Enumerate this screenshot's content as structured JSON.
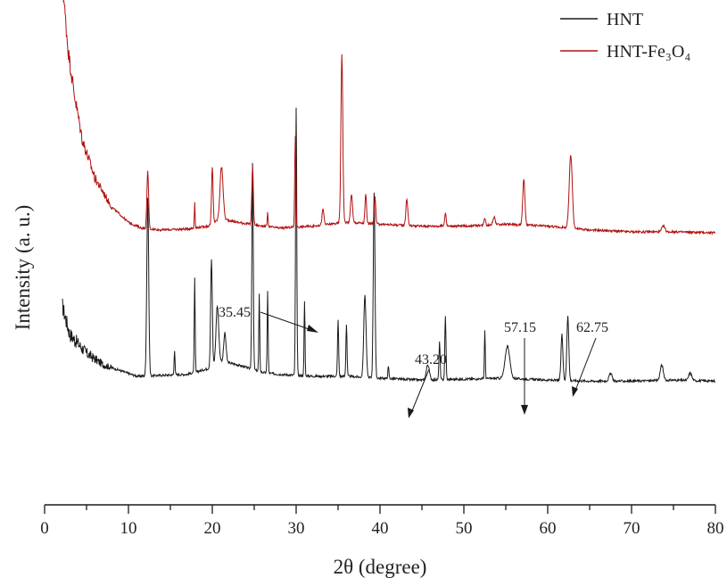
{
  "chart_data": {
    "type": "line",
    "xlabel": "2θ (degree)",
    "ylabel": "Intensity (a. u.)",
    "xlim": [
      0,
      80
    ],
    "xticks": [
      0,
      10,
      20,
      30,
      40,
      50,
      60,
      70,
      80
    ],
    "grid": false,
    "legend_position": "top-right",
    "series": [
      {
        "name": "HNT",
        "color": "#1a1a1a",
        "baseline": [
          [
            2.1,
            0.78
          ],
          [
            3,
            0.63
          ],
          [
            5,
            0.53
          ],
          [
            7,
            0.47
          ],
          [
            9,
            0.44
          ],
          [
            11,
            0.41
          ],
          [
            14,
            0.415
          ],
          [
            17,
            0.42
          ],
          [
            19.5,
            0.45
          ],
          [
            21,
            0.49
          ],
          [
            23,
            0.47
          ],
          [
            26,
            0.43
          ],
          [
            28,
            0.42
          ],
          [
            32,
            0.41
          ],
          [
            36,
            0.41
          ],
          [
            40,
            0.4
          ],
          [
            45,
            0.39
          ],
          [
            50,
            0.395
          ],
          [
            55,
            0.4
          ],
          [
            60,
            0.39
          ],
          [
            65,
            0.385
          ],
          [
            70,
            0.385
          ],
          [
            75,
            0.39
          ],
          [
            80,
            0.385
          ]
        ],
        "peaks": [
          [
            12.3,
            0.93,
            0.25
          ],
          [
            15.5,
            0.13,
            0.12
          ],
          [
            17.9,
            0.49,
            0.12
          ],
          [
            19.9,
            0.56,
            0.22
          ],
          [
            20.6,
            0.3,
            0.35
          ],
          [
            21.5,
            0.15,
            0.3
          ],
          [
            24.8,
            1.07,
            0.18
          ],
          [
            25.6,
            0.4,
            0.12
          ],
          [
            26.6,
            0.43,
            0.12
          ],
          [
            30.0,
            1.39,
            0.16
          ],
          [
            31.0,
            0.39,
            0.12
          ],
          [
            35.0,
            0.29,
            0.15
          ],
          [
            36.0,
            0.27,
            0.15
          ],
          [
            38.2,
            0.43,
            0.3
          ],
          [
            39.3,
            0.97,
            0.22
          ],
          [
            41.0,
            0.06,
            0.15
          ],
          [
            45.7,
            0.08,
            0.4
          ],
          [
            47.1,
            0.2,
            0.15
          ],
          [
            47.8,
            0.33,
            0.15
          ],
          [
            52.5,
            0.25,
            0.12
          ],
          [
            55.2,
            0.17,
            0.6
          ],
          [
            61.7,
            0.24,
            0.25
          ],
          [
            62.4,
            0.34,
            0.25
          ],
          [
            67.5,
            0.04,
            0.4
          ],
          [
            73.6,
            0.08,
            0.4
          ],
          [
            77.0,
            0.04,
            0.4
          ]
        ]
      },
      {
        "name": "HNT-Fe₃O₄",
        "color": "#b01010",
        "baseline": [
          [
            2.1,
            1.38
          ],
          [
            2.8,
            1.02
          ],
          [
            3.5,
            0.8
          ],
          [
            4.5,
            0.55
          ],
          [
            6,
            0.35
          ],
          [
            8,
            0.2
          ],
          [
            10,
            0.12
          ],
          [
            11.5,
            0.09
          ],
          [
            14,
            0.08
          ],
          [
            17,
            0.085
          ],
          [
            19.5,
            0.1
          ],
          [
            21,
            0.14
          ],
          [
            23,
            0.12
          ],
          [
            26,
            0.1
          ],
          [
            28,
            0.09
          ],
          [
            32,
            0.1
          ],
          [
            34,
            0.11
          ],
          [
            36,
            0.12
          ],
          [
            40,
            0.11
          ],
          [
            45,
            0.1
          ],
          [
            50,
            0.1
          ],
          [
            55,
            0.11
          ],
          [
            60,
            0.1
          ],
          [
            65,
            0.08
          ],
          [
            70,
            0.07
          ],
          [
            75,
            0.07
          ],
          [
            80,
            0.065
          ]
        ],
        "peaks": [
          [
            12.3,
            0.3,
            0.22
          ],
          [
            17.9,
            0.14,
            0.1
          ],
          [
            20.0,
            0.29,
            0.2
          ],
          [
            21.1,
            0.27,
            0.4
          ],
          [
            24.8,
            0.3,
            0.2
          ],
          [
            26.6,
            0.07,
            0.12
          ],
          [
            29.9,
            0.47,
            0.16
          ],
          [
            33.2,
            0.08,
            0.25
          ],
          [
            35.45,
            0.88,
            0.25
          ],
          [
            36.6,
            0.15,
            0.25
          ],
          [
            38.3,
            0.15,
            0.2
          ],
          [
            39.4,
            0.14,
            0.2
          ],
          [
            43.2,
            0.14,
            0.25
          ],
          [
            47.8,
            0.07,
            0.2
          ],
          [
            52.5,
            0.04,
            0.2
          ],
          [
            53.6,
            0.04,
            0.3
          ],
          [
            57.15,
            0.24,
            0.28
          ],
          [
            62.75,
            0.38,
            0.4
          ],
          [
            73.8,
            0.03,
            0.4
          ]
        ]
      }
    ],
    "annotations": [
      {
        "label": "35.45",
        "x": 35.45
      },
      {
        "label": "43.20",
        "x": 43.2
      },
      {
        "label": "57.15",
        "x": 57.15
      },
      {
        "label": "62.75",
        "x": 62.75
      }
    ]
  }
}
